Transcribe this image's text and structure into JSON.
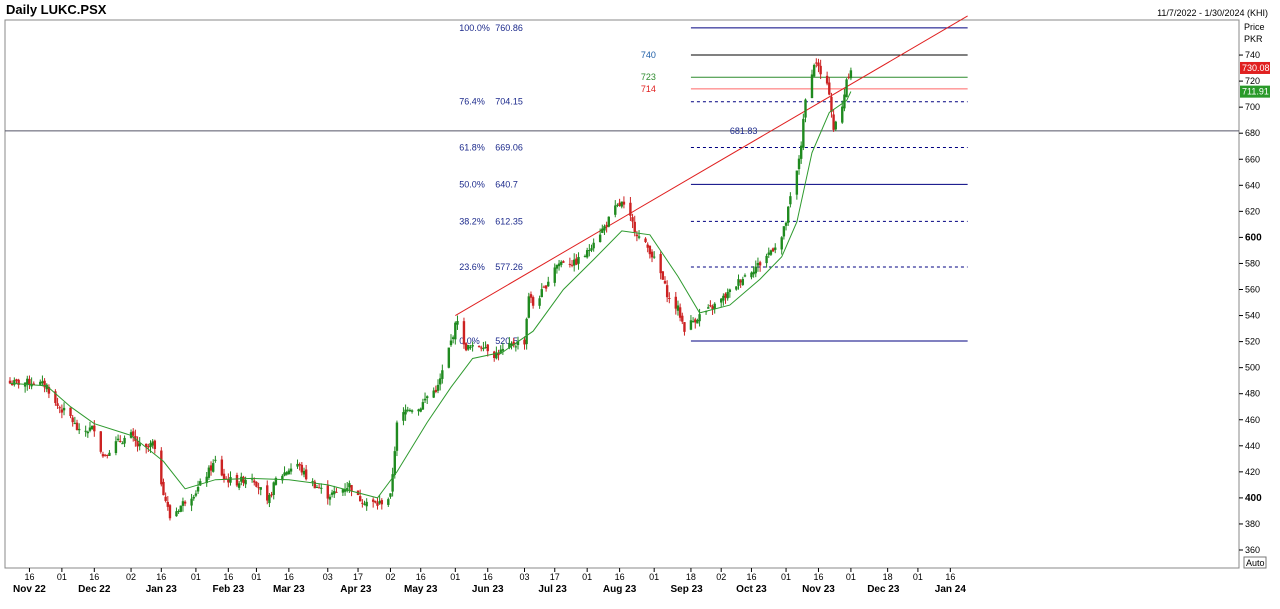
{
  "header": {
    "title": "Daily LUKC.PSX",
    "date_range": "11/7/2022 - 1/30/2024 (KHI)"
  },
  "axis_header": {
    "price": "Price",
    "currency": "PKR",
    "auto_button": "Auto"
  },
  "chart_data": {
    "type": "candlestick",
    "title": "Daily LUKC.PSX",
    "ylabel": "Price PKR",
    "ylim": [
      352,
      772
    ],
    "y_ticks": [
      360,
      380,
      400,
      420,
      440,
      460,
      480,
      500,
      520,
      540,
      560,
      580,
      600,
      620,
      640,
      660,
      680,
      700,
      720,
      740
    ],
    "y_tick_labels": [
      "360",
      "380",
      "400",
      "420",
      "440",
      "460",
      "480",
      "500",
      "520",
      "540",
      "560",
      "580",
      "600",
      "620",
      "640",
      "660",
      "680",
      "700",
      "720",
      "740"
    ],
    "bold_y_ticks": [
      400,
      600
    ],
    "x_ticks": [
      {
        "date": "2022-11-16",
        "label": "16"
      },
      {
        "date": "2022-12-01",
        "label": "01"
      },
      {
        "date": "2022-12-16",
        "label": "16"
      },
      {
        "date": "2023-01-02",
        "label": "02"
      },
      {
        "date": "2023-01-16",
        "label": "16"
      },
      {
        "date": "2023-02-01",
        "label": "01"
      },
      {
        "date": "2023-02-16",
        "label": "16"
      },
      {
        "date": "2023-03-01",
        "label": "01"
      },
      {
        "date": "2023-03-16",
        "label": "16"
      },
      {
        "date": "2023-04-03",
        "label": "03"
      },
      {
        "date": "2023-04-17",
        "label": "17"
      },
      {
        "date": "2023-05-02",
        "label": "02"
      },
      {
        "date": "2023-05-16",
        "label": "16"
      },
      {
        "date": "2023-06-01",
        "label": "01"
      },
      {
        "date": "2023-06-16",
        "label": "16"
      },
      {
        "date": "2023-07-03",
        "label": "03"
      },
      {
        "date": "2023-07-17",
        "label": "17"
      },
      {
        "date": "2023-08-01",
        "label": "01"
      },
      {
        "date": "2023-08-16",
        "label": "16"
      },
      {
        "date": "2023-09-01",
        "label": "01"
      },
      {
        "date": "2023-09-18",
        "label": "18"
      },
      {
        "date": "2023-10-02",
        "label": "02"
      },
      {
        "date": "2023-10-16",
        "label": "16"
      },
      {
        "date": "2023-11-01",
        "label": "01"
      },
      {
        "date": "2023-11-16",
        "label": "16"
      },
      {
        "date": "2023-12-01",
        "label": "01"
      },
      {
        "date": "2023-12-18",
        "label": "18"
      },
      {
        "date": "2024-01-01",
        "label": "01"
      },
      {
        "date": "2024-01-16",
        "label": "16"
      }
    ],
    "month_labels": [
      {
        "date": "2022-11-16",
        "label": "Nov 22"
      },
      {
        "date": "2022-12-16",
        "label": "Dec 22"
      },
      {
        "date": "2023-01-16",
        "label": "Jan 23"
      },
      {
        "date": "2023-02-16",
        "label": "Feb 23"
      },
      {
        "date": "2023-03-16",
        "label": "Mar 23"
      },
      {
        "date": "2023-04-16",
        "label": "Apr 23"
      },
      {
        "date": "2023-05-16",
        "label": "May 23"
      },
      {
        "date": "2023-06-16",
        "label": "Jun 23"
      },
      {
        "date": "2023-07-16",
        "label": "Jul 23"
      },
      {
        "date": "2023-08-16",
        "label": "Aug 23"
      },
      {
        "date": "2023-09-16",
        "label": "Sep 23"
      },
      {
        "date": "2023-10-16",
        "label": "Oct 23"
      },
      {
        "date": "2023-11-16",
        "label": "Nov 23"
      },
      {
        "date": "2023-12-16",
        "label": "Dec 23"
      },
      {
        "date": "2024-01-16",
        "label": "Jan 24"
      }
    ],
    "price_path": [
      [
        "2022-11-07",
        488
      ],
      [
        "2022-11-18",
        489
      ],
      [
        "2022-11-24",
        486
      ],
      [
        "2022-11-28",
        472
      ],
      [
        "2022-12-05",
        462
      ],
      [
        "2022-12-09",
        450
      ],
      [
        "2022-12-16",
        454
      ],
      [
        "2022-12-20",
        432
      ],
      [
        "2022-12-26",
        442
      ],
      [
        "2023-01-02",
        448
      ],
      [
        "2023-01-05",
        440
      ],
      [
        "2023-01-09",
        437
      ],
      [
        "2023-01-12",
        442
      ],
      [
        "2023-01-17",
        405
      ],
      [
        "2023-01-20",
        385
      ],
      [
        "2023-01-24",
        392
      ],
      [
        "2023-01-27",
        398
      ],
      [
        "2023-02-01",
        405
      ],
      [
        "2023-02-06",
        418
      ],
      [
        "2023-02-10",
        428
      ],
      [
        "2023-02-14",
        415
      ],
      [
        "2023-02-20",
        412
      ],
      [
        "2023-02-27",
        417
      ],
      [
        "2023-03-03",
        406
      ],
      [
        "2023-03-06",
        395
      ],
      [
        "2023-03-10",
        414
      ],
      [
        "2023-03-16",
        422
      ],
      [
        "2023-03-20",
        426
      ],
      [
        "2023-03-24",
        416
      ],
      [
        "2023-03-28",
        410
      ],
      [
        "2023-04-03",
        402
      ],
      [
        "2023-04-07",
        404
      ],
      [
        "2023-04-13",
        410
      ],
      [
        "2023-04-17",
        400
      ],
      [
        "2023-04-21",
        397
      ],
      [
        "2023-04-26",
        395
      ],
      [
        "2023-05-02",
        401
      ],
      [
        "2023-05-05",
        456
      ],
      [
        "2023-05-10",
        470
      ],
      [
        "2023-05-15",
        468
      ],
      [
        "2023-05-19",
        478
      ],
      [
        "2023-05-24",
        485
      ],
      [
        "2023-05-30",
        520
      ],
      [
        "2023-06-02",
        538
      ],
      [
        "2023-06-05",
        516
      ],
      [
        "2023-06-09",
        515
      ],
      [
        "2023-06-14",
        518
      ],
      [
        "2023-06-19",
        510
      ],
      [
        "2023-06-23",
        513
      ],
      [
        "2023-06-28",
        518
      ],
      [
        "2023-07-03",
        520
      ],
      [
        "2023-07-05",
        556
      ],
      [
        "2023-07-07",
        548
      ],
      [
        "2023-07-12",
        560
      ],
      [
        "2023-07-17",
        578
      ],
      [
        "2023-07-21",
        582
      ],
      [
        "2023-07-26",
        580
      ],
      [
        "2023-08-01",
        588
      ],
      [
        "2023-08-04",
        598
      ],
      [
        "2023-08-09",
        608
      ],
      [
        "2023-08-14",
        622
      ],
      [
        "2023-08-17",
        626
      ],
      [
        "2023-08-21",
        614
      ],
      [
        "2023-08-25",
        600
      ],
      [
        "2023-08-30",
        590
      ],
      [
        "2023-09-04",
        572
      ],
      [
        "2023-09-08",
        552
      ],
      [
        "2023-09-12",
        545
      ],
      [
        "2023-09-15",
        530
      ],
      [
        "2023-09-19",
        536
      ],
      [
        "2023-09-22",
        540
      ],
      [
        "2023-09-27",
        545
      ],
      [
        "2023-10-02",
        552
      ],
      [
        "2023-10-06",
        558
      ],
      [
        "2023-10-11",
        568
      ],
      [
        "2023-10-16",
        575
      ],
      [
        "2023-10-20",
        580
      ],
      [
        "2023-10-25",
        590
      ],
      [
        "2023-10-30",
        600
      ],
      [
        "2023-11-01",
        612
      ],
      [
        "2023-11-03",
        630
      ],
      [
        "2023-11-06",
        650
      ],
      [
        "2023-11-08",
        672
      ],
      [
        "2023-11-10",
        705
      ],
      [
        "2023-11-13",
        728
      ],
      [
        "2023-11-15",
        735
      ],
      [
        "2023-11-17",
        725
      ],
      [
        "2023-11-21",
        712
      ],
      [
        "2023-11-23",
        683
      ],
      [
        "2023-11-27",
        700
      ],
      [
        "2023-11-29",
        722
      ],
      [
        "2023-12-01",
        730
      ]
    ],
    "moving_average_path": [
      [
        "2022-11-07",
        488
      ],
      [
        "2022-11-24",
        486
      ],
      [
        "2022-12-05",
        470
      ],
      [
        "2022-12-16",
        457
      ],
      [
        "2023-01-02",
        448
      ],
      [
        "2023-01-17",
        428
      ],
      [
        "2023-01-27",
        407
      ],
      [
        "2023-02-10",
        414
      ],
      [
        "2023-02-27",
        415
      ],
      [
        "2023-03-16",
        414
      ],
      [
        "2023-04-03",
        410
      ],
      [
        "2023-04-26",
        400
      ],
      [
        "2023-05-05",
        420
      ],
      [
        "2023-05-19",
        458
      ],
      [
        "2023-05-30",
        485
      ],
      [
        "2023-06-09",
        507
      ],
      [
        "2023-06-23",
        512
      ],
      [
        "2023-07-07",
        528
      ],
      [
        "2023-07-21",
        560
      ],
      [
        "2023-08-04",
        583
      ],
      [
        "2023-08-17",
        605
      ],
      [
        "2023-08-30",
        602
      ],
      [
        "2023-09-12",
        570
      ],
      [
        "2023-09-22",
        542
      ],
      [
        "2023-10-06",
        548
      ],
      [
        "2023-10-20",
        568
      ],
      [
        "2023-10-30",
        585
      ],
      [
        "2023-11-06",
        612
      ],
      [
        "2023-11-13",
        665
      ],
      [
        "2023-11-21",
        696
      ],
      [
        "2023-11-29",
        705
      ],
      [
        "2023-12-01",
        712
      ]
    ],
    "fibonacci": {
      "label_date": "2023-06-01",
      "line_start": "2023-09-18",
      "line_end": "2024-01-24",
      "levels": [
        {
          "label": "100.0%",
          "value": 760.86,
          "text": "760.86",
          "color": "#000080",
          "dash": false
        },
        {
          "label": "76.4%",
          "value": 704.15,
          "text": "704.15",
          "color": "#000080",
          "dash": true
        },
        {
          "label": "61.8%",
          "value": 669.06,
          "text": "669.06",
          "color": "#000080",
          "dash": true
        },
        {
          "label": "50.0%",
          "value": 640.7,
          "text": "640.7",
          "color": "#000080",
          "dash": false
        },
        {
          "label": "38.2%",
          "value": 612.35,
          "text": "612.35",
          "color": "#000080",
          "dash": true
        },
        {
          "label": "23.6%",
          "value": 577.26,
          "text": "577.26",
          "color": "#000080",
          "dash": true
        },
        {
          "label": "0.0%",
          "value": 520.5,
          "text": "520.5",
          "color": "#000080",
          "dash": false
        }
      ]
    },
    "horizontal_lines": [
      {
        "label": "740",
        "value": 740,
        "color": "#000000",
        "label_color": "#1f5fa8"
      },
      {
        "label": "723",
        "value": 723,
        "color": "#2e8b2e",
        "label_color": "#2e8b2e"
      },
      {
        "label": "714",
        "value": 714,
        "color": "#ff6666",
        "label_color": "#e02020"
      }
    ],
    "support_line": {
      "value": 681.83,
      "label": "681.83",
      "color": "#555566"
    },
    "trendline": {
      "start": [
        "2023-06-01",
        540
      ],
      "end": [
        "2024-01-24",
        770
      ],
      "color": "#e02020"
    },
    "price_labels": [
      {
        "value": 730.08,
        "text": "730.08",
        "color": "#e02020"
      },
      {
        "value": 711.91,
        "text": "711.91",
        "color": "#2a9a2a"
      }
    ],
    "colors": {
      "up": "#1f8a1f",
      "down": "#cc2222",
      "ma": "#2e9a2e",
      "grid": "#000000"
    }
  }
}
